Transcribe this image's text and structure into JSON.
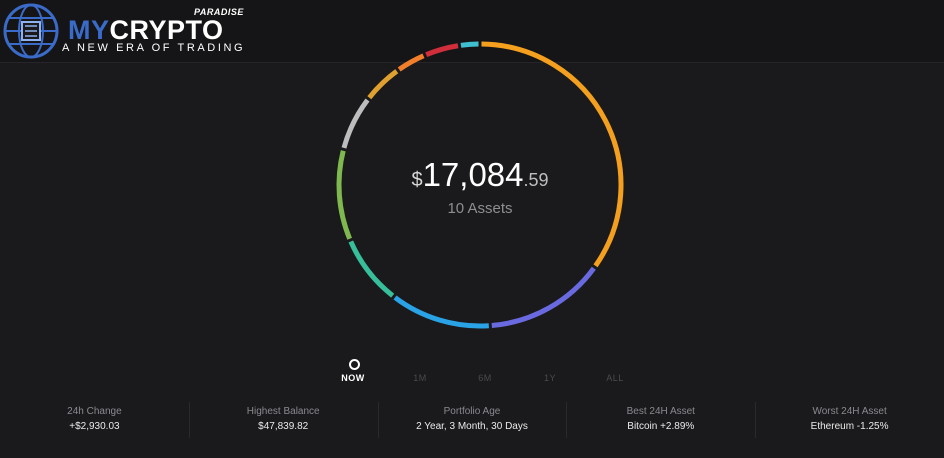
{
  "brand": {
    "name_part1": "MY",
    "name_part2": "CRYPTO",
    "superscript": "PARADISE",
    "tagline": "A NEW ERA OF TRADING"
  },
  "portfolio": {
    "currency_symbol": "$",
    "value_integer": "17,084",
    "value_decimal": ".59",
    "assets_label": "10 Assets"
  },
  "colors": {
    "background": "#1a1a1c",
    "accent": "#f0961e"
  },
  "chart_data": {
    "type": "pie",
    "style": "donut-ring",
    "segments": [
      {
        "color": "#f4a01e",
        "value": 30
      },
      {
        "color": "#6a6ae0",
        "value": 12
      },
      {
        "color": "#2aa2e6",
        "value": 10
      },
      {
        "color": "#36bf9a",
        "value": 7
      },
      {
        "color": "#7fb84e",
        "value": 9
      },
      {
        "color": "#bdbdbd",
        "value": 5.5
      },
      {
        "color": "#e0a030",
        "value": 4
      },
      {
        "color": "#f07e2a",
        "value": 3
      },
      {
        "color": "#d12e3c",
        "value": 3.5
      },
      {
        "color": "#3fc0d0",
        "value": 2
      }
    ]
  },
  "time_range": {
    "options": [
      "NOW",
      "1M",
      "6M",
      "1Y",
      "ALL"
    ],
    "selected": "NOW"
  },
  "stats": [
    {
      "label": "24h Change",
      "value": "+$2,930.03"
    },
    {
      "label": "Highest Balance",
      "value": "$47,839.82"
    },
    {
      "label": "Portfolio Age",
      "value": "2 Year, 3 Month, 30 Days"
    },
    {
      "label": "Best 24H Asset",
      "value": "Bitcoin +2.89%"
    },
    {
      "label": "Worst 24H Asset",
      "value": "Ethereum -1.25%"
    }
  ]
}
